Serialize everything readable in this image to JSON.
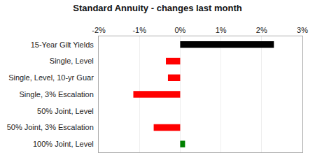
{
  "chart_data": {
    "type": "bar",
    "orientation": "horizontal",
    "title": "Standard Annuity - changes last month",
    "categories": [
      "15-Year Gilt Yields",
      "Single, Level",
      "Single, Level, 10-yr Guar",
      "Single, 3% Escalation",
      "50% Joint, Level",
      "50% Joint, 3% Escalation",
      "100% Joint, Level"
    ],
    "values": [
      2.3,
      -0.35,
      -0.3,
      -1.15,
      0.0,
      -0.65,
      0.12
    ],
    "colors": [
      "#000000",
      "#ff0000",
      "#ff0000",
      "#ff0000",
      "#ff0000",
      "#ff0000",
      "#008000"
    ],
    "xlim": [
      -2,
      3
    ],
    "xticks": [
      {
        "value": -2,
        "label": "-2%"
      },
      {
        "value": -1,
        "label": "-1%"
      },
      {
        "value": 0,
        "label": "0%"
      },
      {
        "value": 1,
        "label": "1%"
      },
      {
        "value": 2,
        "label": "2%"
      },
      {
        "value": 3,
        "label": "3%"
      }
    ],
    "grid": true
  }
}
